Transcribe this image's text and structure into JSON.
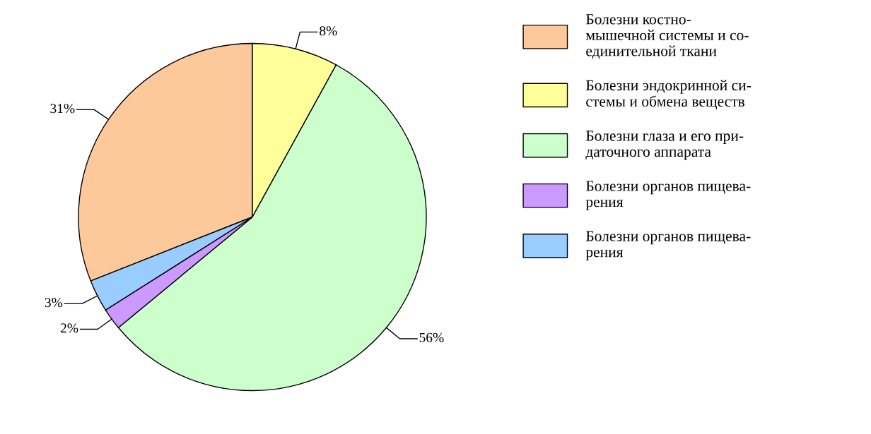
{
  "chart_data": {
    "type": "pie",
    "categories": [
      "Болезни костно-\nмышечной системы и со-\nединительной ткани",
      "Болезни эндокринной си-\nстемы и обмена веществ",
      "Болезни глаза и его при-\nдаточного аппарата",
      "Болезни органов пищева-\nрения",
      "Болезни органов пищева-\nрения"
    ],
    "values": [
      31,
      8,
      56,
      2,
      3
    ],
    "value_labels": [
      "31%",
      "8%",
      "56%",
      "2%",
      "3%"
    ],
    "colors": [
      "#fdc89a",
      "#ffff99",
      "#ccffcc",
      "#cc99ff",
      "#99ccff"
    ],
    "legend": "right"
  }
}
